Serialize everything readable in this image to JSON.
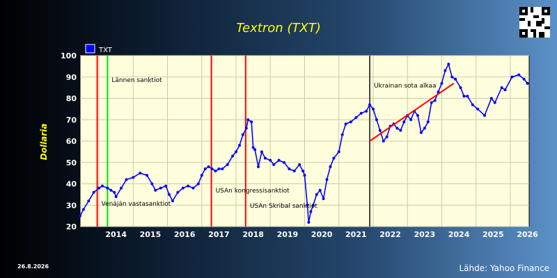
{
  "chart_data": {
    "type": "line",
    "title": "Textron (TXT)",
    "ylabel": "Dollaria",
    "xlabel": "",
    "ylim": [
      20,
      100
    ],
    "xlim": [
      2013.45,
      2026.55
    ],
    "yticks": [
      20,
      30,
      40,
      50,
      60,
      70,
      80,
      90,
      100
    ],
    "xticks": [
      "2014",
      "2015",
      "2016",
      "2017",
      "2018",
      "2019",
      "2020",
      "2021",
      "2022",
      "2023",
      "2024",
      "2025",
      "2026"
    ],
    "grid": true,
    "legend_position": "top-left",
    "series": [
      {
        "name": "TXT",
        "color": "#0000ff",
        "x": [
          2013.45,
          2013.55,
          2013.7,
          2013.85,
          2014.0,
          2014.1,
          2014.25,
          2014.35,
          2014.45,
          2014.5,
          2014.65,
          2014.8,
          2015.0,
          2015.2,
          2015.4,
          2015.55,
          2015.65,
          2015.8,
          2015.95,
          2016.05,
          2016.15,
          2016.3,
          2016.45,
          2016.6,
          2016.75,
          2016.9,
          2017.0,
          2017.1,
          2017.2,
          2017.3,
          2017.4,
          2017.5,
          2017.6,
          2017.75,
          2017.9,
          2018.0,
          2018.1,
          2018.2,
          2018.3,
          2018.35,
          2018.45,
          2018.5,
          2018.55,
          2018.65,
          2018.75,
          2018.85,
          2019.0,
          2019.1,
          2019.25,
          2019.4,
          2019.55,
          2019.7,
          2019.85,
          2019.95,
          2020.0,
          2020.08,
          2020.12,
          2020.18,
          2020.25,
          2020.35,
          2020.45,
          2020.55,
          2020.65,
          2020.75,
          2020.85,
          2021.0,
          2021.1,
          2021.2,
          2021.35,
          2021.5,
          2021.65,
          2021.8,
          2021.9,
          2022.0,
          2022.1,
          2022.2,
          2022.3,
          2022.4,
          2022.5,
          2022.6,
          2022.7,
          2022.8,
          2022.9,
          2023.0,
          2023.1,
          2023.2,
          2023.3,
          2023.4,
          2023.5,
          2023.6,
          2023.7,
          2023.8,
          2023.9,
          2024.0,
          2024.1,
          2024.2,
          2024.3,
          2024.4
        ],
        "y": [
          25,
          28,
          32,
          36,
          38,
          39,
          38,
          37,
          36,
          34,
          38,
          42,
          43,
          45,
          44,
          40,
          37,
          38,
          39,
          35,
          32,
          36,
          38,
          39,
          38,
          40,
          44,
          47,
          48,
          47,
          46,
          47,
          47,
          49,
          53,
          55,
          58,
          63,
          66,
          70,
          69,
          57,
          56,
          48,
          55,
          52,
          51,
          49,
          51,
          50,
          47,
          46,
          49,
          46,
          44,
          30,
          22,
          27,
          30,
          35,
          37,
          33,
          42,
          48,
          52,
          55,
          63,
          68,
          69,
          71,
          73,
          74,
          77,
          75,
          70,
          65,
          60,
          62,
          67,
          68,
          66,
          65,
          69,
          72,
          70,
          74,
          72,
          64,
          66,
          69,
          78,
          79,
          83,
          87,
          93,
          96,
          90,
          89
        ]
      },
      {
        "name": "",
        "color": "#0000ff",
        "x": [
          2024.4,
          2024.55,
          2024.65,
          2024.75,
          2024.9,
          2025.05,
          2025.25,
          2025.45,
          2025.55,
          2025.75,
          2025.85,
          2026.05,
          2026.25,
          2026.4,
          2026.5
        ],
        "y": [
          89,
          85,
          81,
          81,
          77,
          75,
          72,
          80,
          78,
          85,
          84,
          90,
          91,
          89,
          87
        ]
      },
      {
        "name": "",
        "color": "#ff0000",
        "x": [
          2021.9,
          2024.35
        ],
        "y": [
          60,
          87
        ]
      }
    ],
    "annotations": [
      {
        "text": "Lännen sanktiot",
        "x": 2014.25,
        "color": "#00e000"
      },
      {
        "text": "Venäjän vastasanktiot",
        "x": 2013.95,
        "color": "#ff0000"
      },
      {
        "text": "USAn kongressisanktiot",
        "x": 2017.28,
        "color": "#ff0000"
      },
      {
        "text": "USAn Skribal sanktiot",
        "x": 2018.28,
        "color": "#ff0000"
      },
      {
        "text": "Ukrainan sota alkaa",
        "x": 2021.9,
        "color": "#444444"
      }
    ]
  },
  "footer": {
    "date": "26.8.2026",
    "source": "Lähde: Yahoo Finance"
  },
  "qr_icon": "qr-code-icon"
}
